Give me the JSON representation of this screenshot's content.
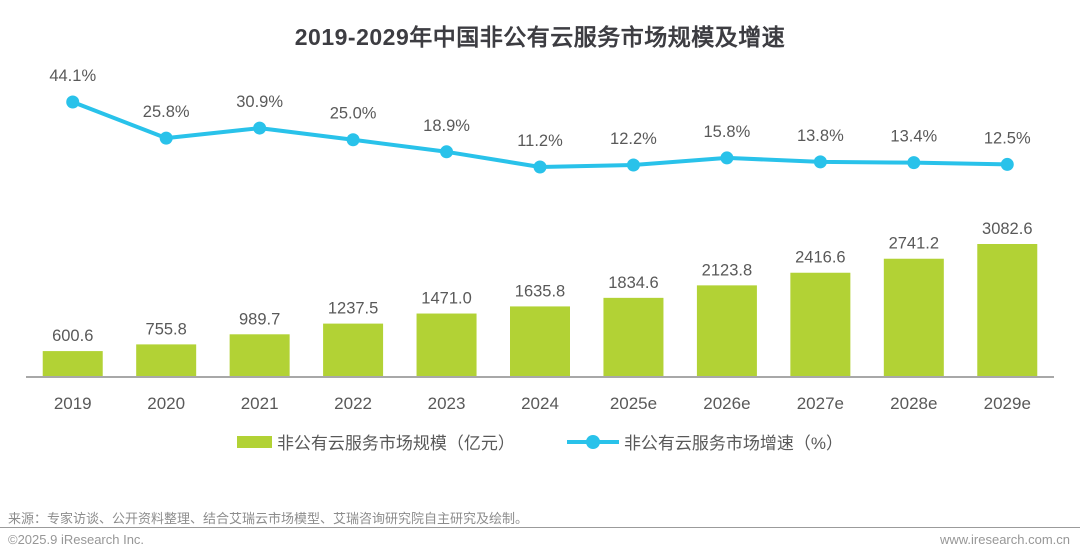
{
  "title": "2019-2029年中国非公有云服务市场规模及增速",
  "chart_data": {
    "type": "bar",
    "subtype": "bar-line-combo",
    "title": "2019-2029年中国非公有云服务市场规模及增速",
    "categories": [
      "2019",
      "2020",
      "2021",
      "2022",
      "2023",
      "2024",
      "2025e",
      "2026e",
      "2027e",
      "2028e",
      "2029e"
    ],
    "series": [
      {
        "name": "非公有云服务市场规模（亿元）",
        "type": "bar",
        "values": [
          600.6,
          755.8,
          989.7,
          1237.5,
          1471.0,
          1635.8,
          1834.6,
          2123.8,
          2416.6,
          2741.2,
          3082.6
        ],
        "color": "#b2d235"
      },
      {
        "name": "非公有云服务市场增速（%）",
        "type": "line",
        "values": [
          44.1,
          25.8,
          30.9,
          25.0,
          18.9,
          11.2,
          12.2,
          15.8,
          13.8,
          13.4,
          12.5
        ],
        "color": "#29c2ea"
      }
    ],
    "value_labels": true,
    "xlabel": "",
    "ylabel": "",
    "grid": false,
    "legend_position": "bottom",
    "axis_line_color": "#a8a8a8",
    "label_color": "#595959"
  },
  "legend": {
    "bar_label": "非公有云服务市场规模（亿元）",
    "line_label": "非公有云服务市场增速（%）"
  },
  "footer": {
    "source": "来源：专家访谈、公开资料整理、结合艾瑞云市场模型、艾瑞咨询研究院自主研究及绘制。",
    "copyright": "©2025.9 iResearch Inc.",
    "website": "www.iresearch.com.cn"
  },
  "colors": {
    "bar": "#b2d235",
    "line": "#29c2ea",
    "title_text": "#3d3d42",
    "label_text": "#595959",
    "axis_line": "#a8a8a8",
    "footer_text": "#8c8c8c"
  }
}
